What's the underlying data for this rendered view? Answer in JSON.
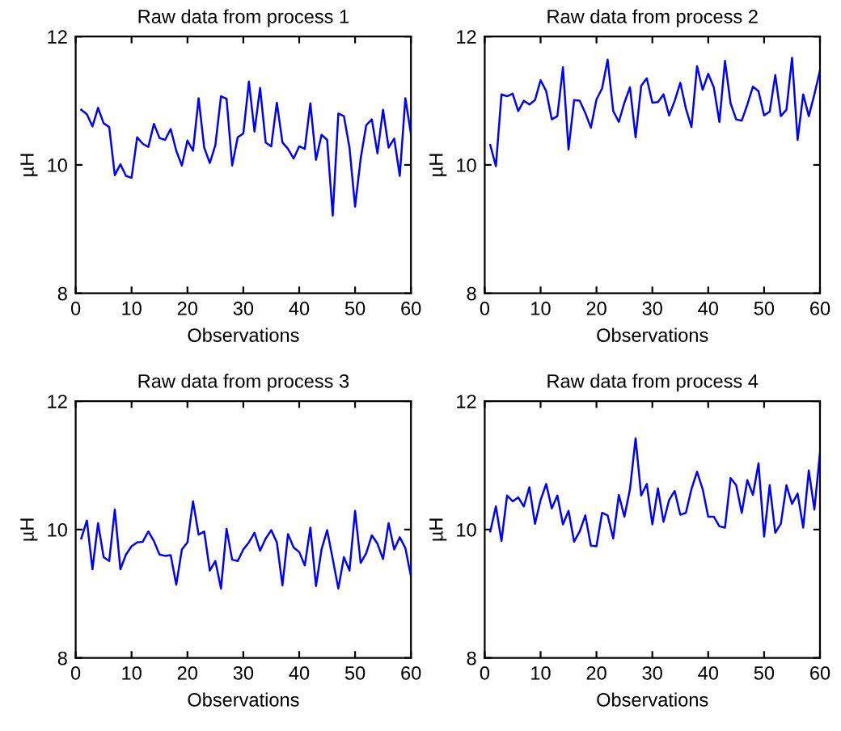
{
  "chart_data": [
    {
      "type": "line",
      "title": "Raw data from process 1",
      "xlabel": "Observations",
      "ylabel": "µH",
      "xlim": [
        0,
        60
      ],
      "xticks": [
        0,
        10,
        20,
        30,
        40,
        50,
        60
      ],
      "ylim": [
        8,
        12
      ],
      "yticks": [
        8,
        10,
        12
      ],
      "grid": false,
      "legend": false,
      "x": [
        1,
        2,
        3,
        4,
        5,
        6,
        7,
        8,
        9,
        10,
        11,
        12,
        13,
        14,
        15,
        16,
        17,
        18,
        19,
        20,
        21,
        22,
        23,
        24,
        25,
        26,
        27,
        28,
        29,
        30,
        31,
        32,
        33,
        34,
        35,
        36,
        37,
        38,
        39,
        40,
        41,
        42,
        43,
        44,
        45,
        46,
        47,
        48,
        49,
        50,
        51,
        52,
        53,
        54,
        55,
        56,
        57,
        58,
        59,
        60
      ],
      "series": [
        {
          "color": "#0000ff",
          "values": [
            10.86,
            10.79,
            10.6,
            10.89,
            10.65,
            10.59,
            9.84,
            10.01,
            9.83,
            9.8,
            10.43,
            10.33,
            10.28,
            10.64,
            10.42,
            10.39,
            10.56,
            10.22,
            9.99,
            10.38,
            10.22,
            11.04,
            10.27,
            10.03,
            10.31,
            11.07,
            11.03,
            9.99,
            10.43,
            10.49,
            11.3,
            10.52,
            11.2,
            10.35,
            10.29,
            10.97,
            10.35,
            10.25,
            10.1,
            10.29,
            10.25,
            10.96,
            10.08,
            10.47,
            10.39,
            9.21,
            10.8,
            10.76,
            10.27,
            9.35,
            10.1,
            10.62,
            10.71,
            10.18,
            10.86,
            10.27,
            10.41,
            9.83,
            11.04,
            10.48
          ]
        }
      ]
    },
    {
      "type": "line",
      "title": "Raw data from process 2",
      "xlabel": "Observations",
      "ylabel": "µH",
      "xlim": [
        0,
        60
      ],
      "xticks": [
        0,
        10,
        20,
        30,
        40,
        50,
        60
      ],
      "ylim": [
        8,
        12
      ],
      "yticks": [
        8,
        10,
        12
      ],
      "grid": false,
      "legend": false,
      "x": [
        1,
        2,
        3,
        4,
        5,
        6,
        7,
        8,
        9,
        10,
        11,
        12,
        13,
        14,
        15,
        16,
        17,
        18,
        19,
        20,
        21,
        22,
        23,
        24,
        25,
        26,
        27,
        28,
        29,
        30,
        31,
        32,
        33,
        34,
        35,
        36,
        37,
        38,
        39,
        40,
        41,
        42,
        43,
        44,
        45,
        46,
        47,
        48,
        49,
        50,
        51,
        52,
        53,
        54,
        55,
        56,
        57,
        58,
        59,
        60
      ],
      "series": [
        {
          "color": "#0000ff",
          "values": [
            10.31,
            9.98,
            11.1,
            11.07,
            11.11,
            10.84,
            11.0,
            10.94,
            11.01,
            11.32,
            11.15,
            10.71,
            10.76,
            11.52,
            10.24,
            11.01,
            11.0,
            10.81,
            10.58,
            11.02,
            11.19,
            11.64,
            10.84,
            10.67,
            10.97,
            11.21,
            10.43,
            11.23,
            11.35,
            10.97,
            10.98,
            11.1,
            10.77,
            11.0,
            11.28,
            10.88,
            10.59,
            11.54,
            11.17,
            11.42,
            11.21,
            10.67,
            11.62,
            10.96,
            10.71,
            10.69,
            10.94,
            11.22,
            11.15,
            10.77,
            10.83,
            11.4,
            10.76,
            10.86,
            11.67,
            10.39,
            11.1,
            10.76,
            11.1,
            11.47
          ]
        }
      ]
    },
    {
      "type": "line",
      "title": "Raw data from process 3",
      "xlabel": "Observations",
      "ylabel": "µH",
      "xlim": [
        0,
        60
      ],
      "xticks": [
        0,
        10,
        20,
        30,
        40,
        50,
        60
      ],
      "ylim": [
        8,
        12
      ],
      "yticks": [
        8,
        10,
        12
      ],
      "grid": false,
      "legend": false,
      "x": [
        1,
        2,
        3,
        4,
        5,
        6,
        7,
        8,
        9,
        10,
        11,
        12,
        13,
        14,
        15,
        16,
        17,
        18,
        19,
        20,
        21,
        22,
        23,
        24,
        25,
        26,
        27,
        28,
        29,
        30,
        31,
        32,
        33,
        34,
        35,
        36,
        37,
        38,
        39,
        40,
        41,
        42,
        43,
        44,
        45,
        46,
        47,
        48,
        49,
        50,
        51,
        52,
        53,
        54,
        55,
        56,
        57,
        58,
        59,
        60
      ],
      "series": [
        {
          "color": "#0000ff",
          "values": [
            9.86,
            10.14,
            9.38,
            10.1,
            9.57,
            9.51,
            10.31,
            9.38,
            9.61,
            9.74,
            9.8,
            9.81,
            9.97,
            9.82,
            9.61,
            9.59,
            9.6,
            9.14,
            9.69,
            9.8,
            10.44,
            9.92,
            9.97,
            9.36,
            9.51,
            9.08,
            10.01,
            9.53,
            9.51,
            9.69,
            9.8,
            9.95,
            9.67,
            9.86,
            9.99,
            9.8,
            9.13,
            9.93,
            9.72,
            9.65,
            9.44,
            10.03,
            9.12,
            9.69,
            9.99,
            9.54,
            9.08,
            9.57,
            9.36,
            10.29,
            9.48,
            9.63,
            9.91,
            9.78,
            9.54,
            10.1,
            9.69,
            9.88,
            9.71,
            9.27
          ]
        }
      ]
    },
    {
      "type": "line",
      "title": "Raw data from process 4",
      "xlabel": "Observations",
      "ylabel": "µH",
      "xlim": [
        0,
        60
      ],
      "xticks": [
        0,
        10,
        20,
        30,
        40,
        50,
        60
      ],
      "ylim": [
        8,
        12
      ],
      "yticks": [
        8,
        10,
        12
      ],
      "grid": false,
      "legend": false,
      "x": [
        1,
        2,
        3,
        4,
        5,
        6,
        7,
        8,
        9,
        10,
        11,
        12,
        13,
        14,
        15,
        16,
        17,
        18,
        19,
        20,
        21,
        22,
        23,
        24,
        25,
        26,
        27,
        28,
        29,
        30,
        31,
        32,
        33,
        34,
        35,
        36,
        37,
        38,
        39,
        40,
        41,
        42,
        43,
        44,
        45,
        46,
        47,
        48,
        49,
        50,
        51,
        52,
        53,
        54,
        55,
        56,
        57,
        58,
        59,
        60
      ],
      "series": [
        {
          "color": "#0000ff",
          "values": [
            9.97,
            10.36,
            9.82,
            10.53,
            10.44,
            10.5,
            10.36,
            10.66,
            10.09,
            10.46,
            10.71,
            10.33,
            10.53,
            10.08,
            10.29,
            9.81,
            9.97,
            10.22,
            9.75,
            9.74,
            10.26,
            10.22,
            9.86,
            10.54,
            10.2,
            10.63,
            11.42,
            10.53,
            10.71,
            10.08,
            10.64,
            10.12,
            10.46,
            10.6,
            10.23,
            10.26,
            10.63,
            10.9,
            10.63,
            10.2,
            10.2,
            10.05,
            10.03,
            10.8,
            10.69,
            10.26,
            10.77,
            10.54,
            11.03,
            9.89,
            10.69,
            9.95,
            10.09,
            10.69,
            10.4,
            10.56,
            10.03,
            10.92,
            10.31,
            11.19
          ]
        }
      ]
    }
  ]
}
